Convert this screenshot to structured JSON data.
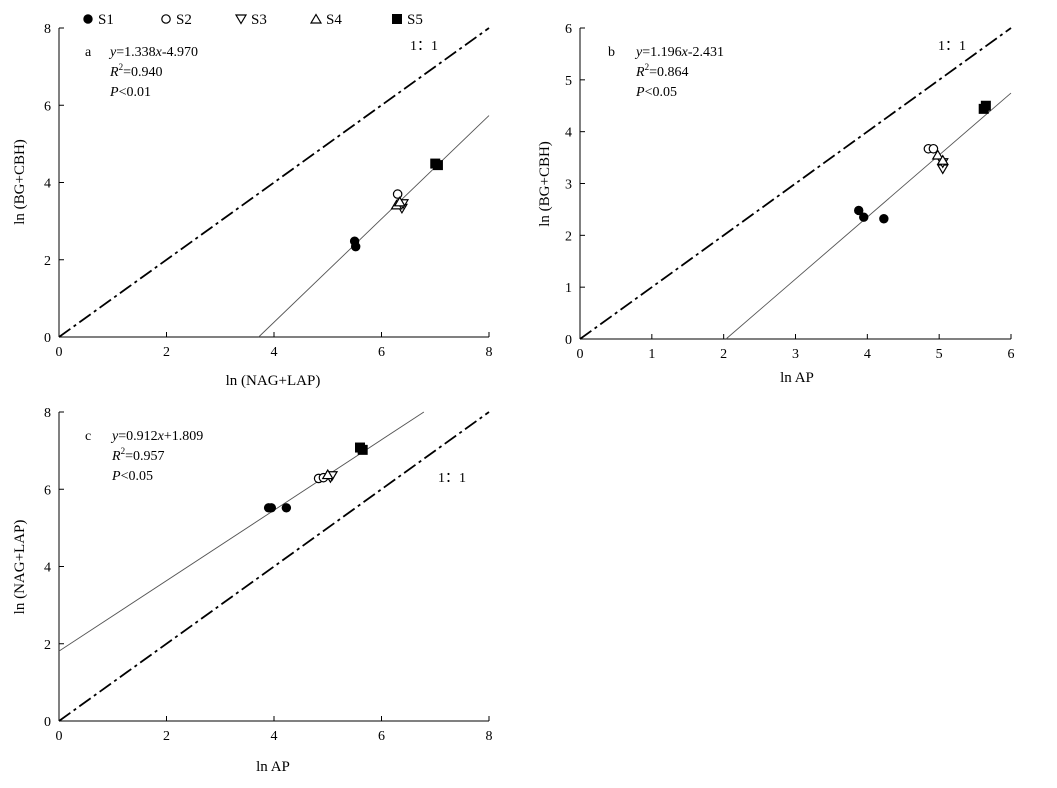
{
  "legend": [
    {
      "label": "S1",
      "marker": "filled-circle"
    },
    {
      "label": "S2",
      "marker": "open-circle"
    },
    {
      "label": "S3",
      "marker": "open-triangle-down"
    },
    {
      "label": "S4",
      "marker": "open-triangle-up"
    },
    {
      "label": "S5",
      "marker": "filled-square"
    }
  ],
  "chart_data": [
    {
      "type": "scatter",
      "panel": "a",
      "xlabel": "ln (NAG+LAP)",
      "ylabel": "ln (BG+CBH)",
      "xlim": [
        0,
        8
      ],
      "ylim": [
        0,
        8
      ],
      "xticks": [
        "0",
        "2",
        "4",
        "6",
        "8"
      ],
      "yticks": [
        "0",
        "2",
        "4",
        "6",
        "8"
      ],
      "equation": {
        "y": "y",
        "rhs": "=1.338",
        "x": "x",
        "tail": "-4.970"
      },
      "r2": {
        "r": "R",
        "sup": "2",
        "rest": "=0.940"
      },
      "p": {
        "p": "P",
        "rest": "<0.01"
      },
      "fit": {
        "slope": 1.338,
        "intercept": -4.97
      },
      "one_to_one_label": "1：1",
      "series": [
        {
          "name": "S1",
          "points": [
            [
              5.5,
              2.48
            ],
            [
              5.52,
              2.34
            ]
          ]
        },
        {
          "name": "S2",
          "points": [
            [
              6.3,
              3.7
            ]
          ]
        },
        {
          "name": "S3",
          "points": [
            [
              6.38,
              3.33
            ],
            [
              6.4,
              3.45
            ]
          ]
        },
        {
          "name": "S4",
          "points": [
            [
              6.28,
              3.42
            ],
            [
              6.34,
              3.5
            ]
          ]
        },
        {
          "name": "S5",
          "points": [
            [
              7.0,
              4.49
            ],
            [
              7.05,
              4.45
            ]
          ]
        }
      ]
    },
    {
      "type": "scatter",
      "panel": "b",
      "xlabel": "ln AP",
      "ylabel": "ln (BG+CBH)",
      "xlim": [
        0,
        6
      ],
      "ylim": [
        0,
        6
      ],
      "xticks": [
        "0",
        "1",
        "2",
        "3",
        "4",
        "5",
        "6"
      ],
      "yticks": [
        "0",
        "1",
        "2",
        "3",
        "4",
        "5",
        "6"
      ],
      "equation": {
        "y": "y",
        "rhs": "=1.196",
        "x": "x",
        "tail": "-2.431"
      },
      "r2": {
        "r": "R",
        "sup": "2",
        "rest": "=0.864"
      },
      "p": {
        "p": "P",
        "rest": "<0.05"
      },
      "fit": {
        "slope": 1.196,
        "intercept": -2.431
      },
      "one_to_one_label": "1：1",
      "series": [
        {
          "name": "S1",
          "points": [
            [
              3.88,
              2.48
            ],
            [
              3.95,
              2.35
            ],
            [
              4.23,
              2.32
            ]
          ]
        },
        {
          "name": "S2",
          "points": [
            [
              4.85,
              3.67
            ],
            [
              4.92,
              3.67
            ]
          ]
        },
        {
          "name": "S3",
          "points": [
            [
              5.05,
              3.28
            ],
            [
              5.05,
              3.4
            ]
          ]
        },
        {
          "name": "S4",
          "points": [
            [
              4.98,
              3.55
            ],
            [
              5.05,
              3.45
            ]
          ]
        },
        {
          "name": "S5",
          "points": [
            [
              5.62,
              4.44
            ],
            [
              5.65,
              4.5
            ]
          ]
        }
      ]
    },
    {
      "type": "scatter",
      "panel": "c",
      "xlabel": "ln AP",
      "ylabel": "ln (NAG+LAP)",
      "xlim": [
        0,
        8
      ],
      "ylim": [
        0,
        8
      ],
      "xticks": [
        "0",
        "2",
        "4",
        "6",
        "8"
      ],
      "yticks": [
        "0",
        "2",
        "4",
        "6",
        "8"
      ],
      "equation": {
        "y": "y",
        "rhs": "=0.912",
        "x": "x",
        "tail": "+1.809"
      },
      "r2": {
        "r": "R",
        "sup": "2",
        "rest": "=0.957"
      },
      "p": {
        "p": "P",
        "rest": "<0.05"
      },
      "fit": {
        "slope": 0.912,
        "intercept": 1.809
      },
      "one_to_one_label": "1：1",
      "series": [
        {
          "name": "S1",
          "points": [
            [
              3.9,
              5.52
            ],
            [
              3.95,
              5.52
            ],
            [
              4.23,
              5.52
            ]
          ]
        },
        {
          "name": "S2",
          "points": [
            [
              4.83,
              6.28
            ],
            [
              4.92,
              6.3
            ]
          ]
        },
        {
          "name": "S3",
          "points": [
            [
              5.05,
              6.3
            ],
            [
              5.08,
              6.35
            ]
          ]
        },
        {
          "name": "S4",
          "points": [
            [
              5.0,
              6.38
            ]
          ]
        },
        {
          "name": "S5",
          "points": [
            [
              5.6,
              7.08
            ],
            [
              5.65,
              7.02
            ]
          ]
        }
      ]
    }
  ]
}
